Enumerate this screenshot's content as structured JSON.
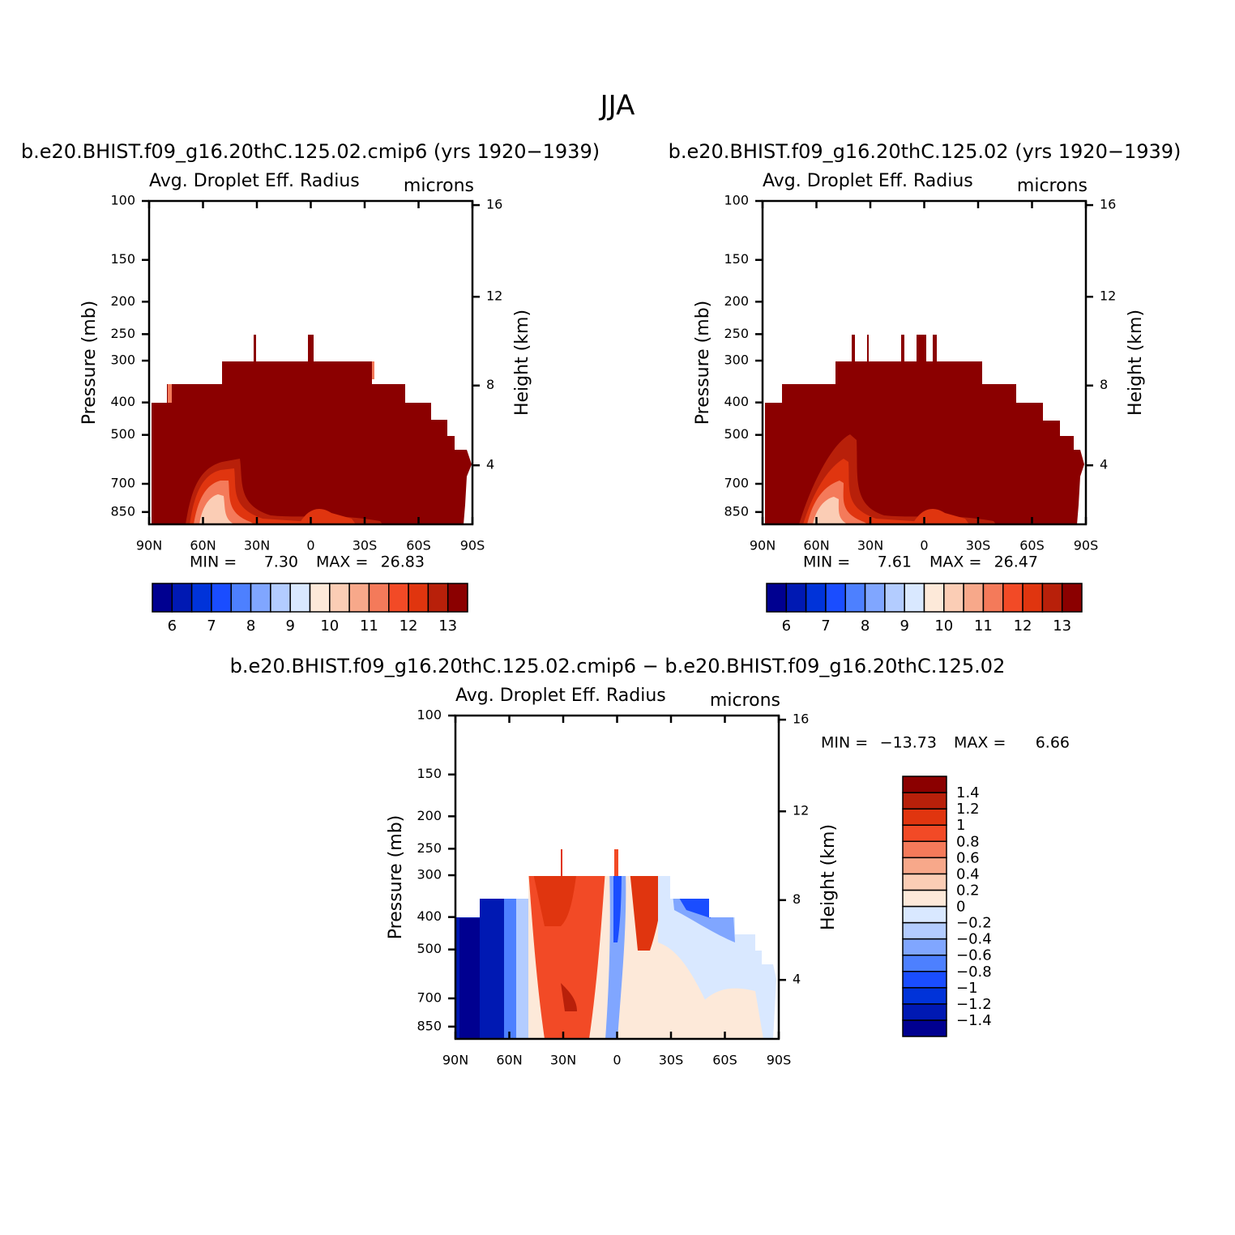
{
  "suptitle": "JJA",
  "chart_data": [
    {
      "type": "contour",
      "title": "b.e20.BHIST.f09_g16.20thC.125.02.cmip6 (yrs 1920−1939)",
      "subtitle": "Avg. Droplet Eff. Radius",
      "units": "microns",
      "ylabel": "Pressure (mb)",
      "y2label": "Height (km)",
      "xlim": [
        90,
        -90
      ],
      "xticks": [
        {
          "value": 90,
          "label": "90N"
        },
        {
          "value": 60,
          "label": "60N"
        },
        {
          "value": 30,
          "label": "30N"
        },
        0,
        {
          "value": -30,
          "label": "30S"
        },
        {
          "value": -60,
          "label": "60S"
        },
        {
          "value": -90,
          "label": "90S"
        }
      ],
      "ylim": [
        100,
        925
      ],
      "ylog": true,
      "yreversed": true,
      "yticks": [
        100,
        150,
        200,
        250,
        300,
        400,
        500,
        700,
        850
      ],
      "y2ticks": [
        4,
        8,
        12,
        16
      ],
      "stats": {
        "names": [
          "MIN =",
          "MAX ="
        ],
        "values": [
          7.3,
          26.83
        ],
        "value_labels": [
          "7.30",
          "26.83"
        ]
      },
      "colorbar": {
        "orientation": "horizontal",
        "lim": [
          5.5,
          13.5
        ],
        "ticks": [
          6,
          7,
          8,
          9,
          10,
          11,
          12,
          13
        ],
        "colors": [
          "#000090",
          "#0019b3",
          "#0033d9",
          "#1a4dff",
          "#4d80ff",
          "#80a6ff",
          "#b3ccff",
          "#d9e8ff",
          "#fde9d9",
          "#fbcdb5",
          "#f7a88a",
          "#f47a5a",
          "#f24a26",
          "#e0350f",
          "#b8200a",
          "#8b0000"
        ]
      }
    },
    {
      "type": "contour",
      "title": "b.e20.BHIST.f09_g16.20thC.125.02 (yrs 1920−1939)",
      "subtitle": "Avg. Droplet Eff. Radius",
      "units": "microns",
      "ylabel": "Pressure (mb)",
      "y2label": "Height (km)",
      "xlim": [
        90,
        -90
      ],
      "xticks": [
        {
          "value": 90,
          "label": "90N"
        },
        {
          "value": 60,
          "label": "60N"
        },
        {
          "value": 30,
          "label": "30N"
        },
        0,
        {
          "value": -30,
          "label": "30S"
        },
        {
          "value": -60,
          "label": "60S"
        },
        {
          "value": -90,
          "label": "90S"
        }
      ],
      "ylim": [
        100,
        925
      ],
      "ylog": true,
      "yreversed": true,
      "yticks": [
        100,
        150,
        200,
        250,
        300,
        400,
        500,
        700,
        850
      ],
      "y2ticks": [
        4,
        8,
        12,
        16
      ],
      "stats": {
        "names": [
          "MIN =",
          "MAX ="
        ],
        "values": [
          7.61,
          26.47
        ],
        "value_labels": [
          "7.61",
          "26.47"
        ]
      },
      "colorbar": {
        "orientation": "horizontal",
        "lim": [
          5.5,
          13.5
        ],
        "ticks": [
          6,
          7,
          8,
          9,
          10,
          11,
          12,
          13
        ],
        "colors": [
          "#000090",
          "#0019b3",
          "#0033d9",
          "#1a4dff",
          "#4d80ff",
          "#80a6ff",
          "#b3ccff",
          "#d9e8ff",
          "#fde9d9",
          "#fbcdb5",
          "#f7a88a",
          "#f47a5a",
          "#f24a26",
          "#e0350f",
          "#b8200a",
          "#8b0000"
        ]
      }
    },
    {
      "type": "contour",
      "title": "b.e20.BHIST.f09_g16.20thC.125.02.cmip6 − b.e20.BHIST.f09_g16.20thC.125.02",
      "subtitle": "Avg. Droplet Eff. Radius",
      "units": "microns",
      "ylabel": "Pressure (mb)",
      "y2label": "Height (km)",
      "xlim": [
        90,
        -90
      ],
      "xticks": [
        {
          "value": 90,
          "label": "90N"
        },
        {
          "value": 60,
          "label": "60N"
        },
        {
          "value": 30,
          "label": "30N"
        },
        0,
        {
          "value": -30,
          "label": "30S"
        },
        {
          "value": -60,
          "label": "60S"
        },
        {
          "value": -90,
          "label": "90S"
        }
      ],
      "ylim": [
        100,
        925
      ],
      "ylog": true,
      "yreversed": true,
      "yticks": [
        100,
        150,
        200,
        250,
        300,
        400,
        500,
        700,
        850
      ],
      "y2ticks": [
        4,
        8,
        12,
        16
      ],
      "stats": {
        "names": [
          "MIN =",
          "MAX ="
        ],
        "values": [
          -13.73,
          6.66
        ],
        "value_labels": [
          "−13.73",
          "6.66"
        ]
      },
      "colorbar": {
        "orientation": "vertical",
        "lim": [
          -1.6,
          1.6
        ],
        "ticks": [
          {
            "value": -1.4,
            "label": "−1.4"
          },
          {
            "value": -1.2,
            "label": "−1.2"
          },
          {
            "value": -1,
            "label": "−1"
          },
          {
            "value": -0.8,
            "label": "−0.8"
          },
          {
            "value": -0.6,
            "label": "−0.6"
          },
          {
            "value": -0.4,
            "label": "−0.4"
          },
          {
            "value": -0.2,
            "label": "−0.2"
          },
          0,
          0.2,
          0.4,
          0.6,
          0.8,
          1,
          1.2,
          1.4
        ],
        "colors": [
          "#000090",
          "#0019b3",
          "#0033d9",
          "#1a4dff",
          "#4d80ff",
          "#80a6ff",
          "#b3ccff",
          "#d9e8ff",
          "#fde9d9",
          "#fbcdb5",
          "#f7a88a",
          "#f47a5a",
          "#f24a26",
          "#e0350f",
          "#b8200a",
          "#8b0000"
        ]
      }
    }
  ]
}
